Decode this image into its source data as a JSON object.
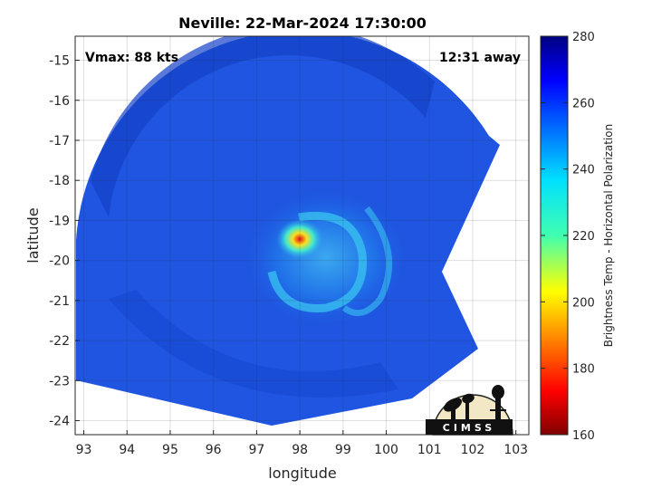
{
  "title": "Neville: 22-Mar-2024 17:30:00",
  "vmax_label": "Vmax: 88 kts",
  "time_away_label": "12:31 away",
  "map": {
    "xlabel": "longitude",
    "ylabel": "latitude",
    "xlim": [
      92.8,
      103.3
    ],
    "ylim": [
      -24.35,
      -14.4
    ],
    "x_ticks": [
      "93",
      "94",
      "95",
      "96",
      "97",
      "98",
      "99",
      "100",
      "101",
      "102",
      "103"
    ],
    "y_ticks": [
      "-15",
      "-16",
      "-17",
      "-18",
      "-19",
      "-20",
      "-21",
      "-22",
      "-23",
      "-24"
    ],
    "grid": true,
    "storm_center": {
      "lon": 98.0,
      "lat": -19.5
    }
  },
  "colorbar": {
    "label": "Brightness Temp - Horizontal Polarization",
    "ticks": [
      "280",
      "260",
      "240",
      "220",
      "200",
      "180",
      "160"
    ],
    "range": [
      160,
      280
    ],
    "colormap": "jet"
  },
  "logo": {
    "text": "CIMSS"
  },
  "colors": {
    "background_field": "#1f55e0",
    "outer_field": "#1440c8",
    "eyewall_cyan": "#3ad8f0",
    "eye_red": "#e01010"
  }
}
